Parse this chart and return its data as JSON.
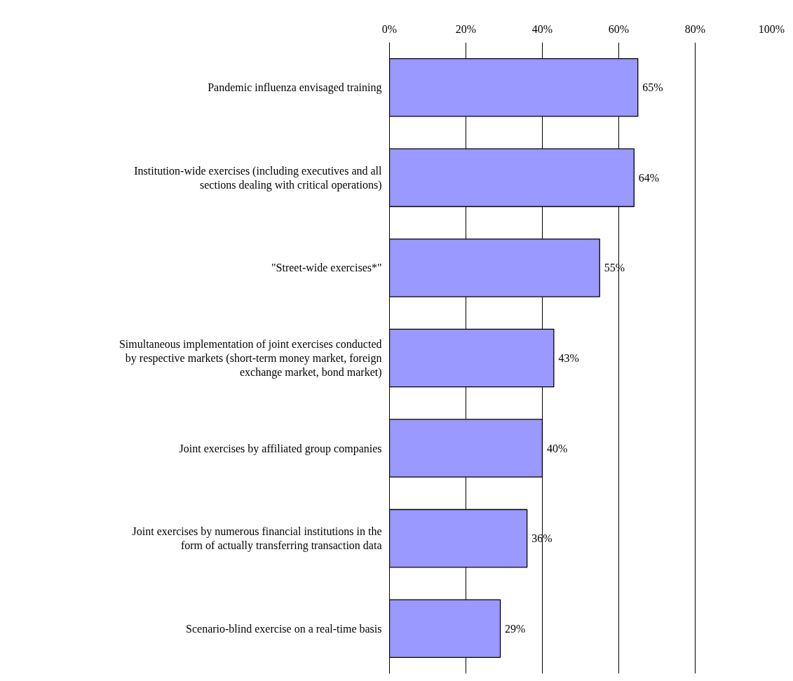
{
  "chart_data": {
    "type": "bar",
    "orientation": "horizontal",
    "categories": [
      "Pandemic influenza envisaged training",
      "Institution-wide exercises (including executives and all sections dealing with critical operations)",
      "\"Street-wide exercises*\"",
      "Simultaneous implementation of joint exercises conducted by respective markets (short-term money market, foreign exchange market, bond market)",
      "Joint exercises by affiliated group companies",
      "Joint exercises by numerous financial institutions in the form of actually transferring transaction data",
      "Scenario-blind exercise on a real-time basis"
    ],
    "values": [
      65,
      64,
      55,
      43,
      40,
      36,
      29
    ],
    "value_labels": [
      "65%",
      "64%",
      "55%",
      "43%",
      "40%",
      "36%",
      "29%"
    ],
    "color": "#9999ff",
    "xlim": [
      0,
      100
    ],
    "xticks": [
      {
        "value": 0,
        "label": "0%"
      },
      {
        "value": 20,
        "label": "20%"
      },
      {
        "value": 40,
        "label": "40%"
      },
      {
        "value": 60,
        "label": "60%"
      },
      {
        "value": 80,
        "label": "80%"
      },
      {
        "value": 100,
        "label": "100%"
      }
    ],
    "grid": "x"
  }
}
